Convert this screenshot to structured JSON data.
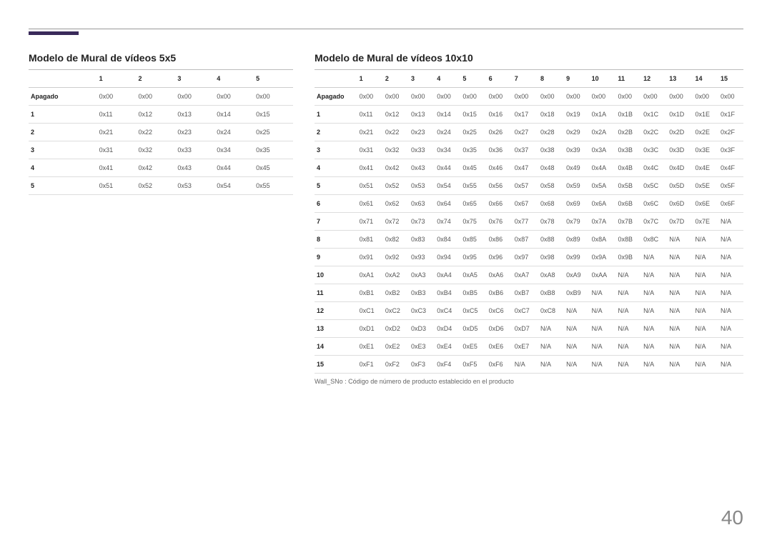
{
  "page_number": "40",
  "footnote": "Wall_SNo : Código de número de producto establecido en el producto",
  "table5": {
    "title": "Modelo de Mural de vídeos 5x5",
    "columns": [
      "",
      "1",
      "2",
      "3",
      "4",
      "5"
    ],
    "rows": [
      [
        "Apagado",
        "0x00",
        "0x00",
        "0x00",
        "0x00",
        "0x00"
      ],
      [
        "1",
        "0x11",
        "0x12",
        "0x13",
        "0x14",
        "0x15"
      ],
      [
        "2",
        "0x21",
        "0x22",
        "0x23",
        "0x24",
        "0x25"
      ],
      [
        "3",
        "0x31",
        "0x32",
        "0x33",
        "0x34",
        "0x35"
      ],
      [
        "4",
        "0x41",
        "0x42",
        "0x43",
        "0x44",
        "0x45"
      ],
      [
        "5",
        "0x51",
        "0x52",
        "0x53",
        "0x54",
        "0x55"
      ]
    ]
  },
  "table10": {
    "title": "Modelo de Mural de vídeos 10x10",
    "columns": [
      "",
      "1",
      "2",
      "3",
      "4",
      "5",
      "6",
      "7",
      "8",
      "9",
      "10",
      "11",
      "12",
      "13",
      "14",
      "15"
    ],
    "rows": [
      [
        "Apagado",
        "0x00",
        "0x00",
        "0x00",
        "0x00",
        "0x00",
        "0x00",
        "0x00",
        "0x00",
        "0x00",
        "0x00",
        "0x00",
        "0x00",
        "0x00",
        "0x00",
        "0x00"
      ],
      [
        "1",
        "0x11",
        "0x12",
        "0x13",
        "0x14",
        "0x15",
        "0x16",
        "0x17",
        "0x18",
        "0x19",
        "0x1A",
        "0x1B",
        "0x1C",
        "0x1D",
        "0x1E",
        "0x1F"
      ],
      [
        "2",
        "0x21",
        "0x22",
        "0x23",
        "0x24",
        "0x25",
        "0x26",
        "0x27",
        "0x28",
        "0x29",
        "0x2A",
        "0x2B",
        "0x2C",
        "0x2D",
        "0x2E",
        "0x2F"
      ],
      [
        "3",
        "0x31",
        "0x32",
        "0x33",
        "0x34",
        "0x35",
        "0x36",
        "0x37",
        "0x38",
        "0x39",
        "0x3A",
        "0x3B",
        "0x3C",
        "0x3D",
        "0x3E",
        "0x3F"
      ],
      [
        "4",
        "0x41",
        "0x42",
        "0x43",
        "0x44",
        "0x45",
        "0x46",
        "0x47",
        "0x48",
        "0x49",
        "0x4A",
        "0x4B",
        "0x4C",
        "0x4D",
        "0x4E",
        "0x4F"
      ],
      [
        "5",
        "0x51",
        "0x52",
        "0x53",
        "0x54",
        "0x55",
        "0x56",
        "0x57",
        "0x58",
        "0x59",
        "0x5A",
        "0x5B",
        "0x5C",
        "0x5D",
        "0x5E",
        "0x5F"
      ],
      [
        "6",
        "0x61",
        "0x62",
        "0x63",
        "0x64",
        "0x65",
        "0x66",
        "0x67",
        "0x68",
        "0x69",
        "0x6A",
        "0x6B",
        "0x6C",
        "0x6D",
        "0x6E",
        "0x6F"
      ],
      [
        "7",
        "0x71",
        "0x72",
        "0x73",
        "0x74",
        "0x75",
        "0x76",
        "0x77",
        "0x78",
        "0x79",
        "0x7A",
        "0x7B",
        "0x7C",
        "0x7D",
        "0x7E",
        "N/A"
      ],
      [
        "8",
        "0x81",
        "0x82",
        "0x83",
        "0x84",
        "0x85",
        "0x86",
        "0x87",
        "0x88",
        "0x89",
        "0x8A",
        "0x8B",
        "0x8C",
        "N/A",
        "N/A",
        "N/A"
      ],
      [
        "9",
        "0x91",
        "0x92",
        "0x93",
        "0x94",
        "0x95",
        "0x96",
        "0x97",
        "0x98",
        "0x99",
        "0x9A",
        "0x9B",
        "N/A",
        "N/A",
        "N/A",
        "N/A"
      ],
      [
        "10",
        "0xA1",
        "0xA2",
        "0xA3",
        "0xA4",
        "0xA5",
        "0xA6",
        "0xA7",
        "0xA8",
        "0xA9",
        "0xAA",
        "N/A",
        "N/A",
        "N/A",
        "N/A",
        "N/A"
      ],
      [
        "11",
        "0xB1",
        "0xB2",
        "0xB3",
        "0xB4",
        "0xB5",
        "0xB6",
        "0xB7",
        "0xB8",
        "0xB9",
        "N/A",
        "N/A",
        "N/A",
        "N/A",
        "N/A",
        "N/A"
      ],
      [
        "12",
        "0xC1",
        "0xC2",
        "0xC3",
        "0xC4",
        "0xC5",
        "0xC6",
        "0xC7",
        "0xC8",
        "N/A",
        "N/A",
        "N/A",
        "N/A",
        "N/A",
        "N/A",
        "N/A"
      ],
      [
        "13",
        "0xD1",
        "0xD2",
        "0xD3",
        "0xD4",
        "0xD5",
        "0xD6",
        "0xD7",
        "N/A",
        "N/A",
        "N/A",
        "N/A",
        "N/A",
        "N/A",
        "N/A",
        "N/A"
      ],
      [
        "14",
        "0xE1",
        "0xE2",
        "0xE3",
        "0xE4",
        "0xE5",
        "0xE6",
        "0xE7",
        "N/A",
        "N/A",
        "N/A",
        "N/A",
        "N/A",
        "N/A",
        "N/A",
        "N/A"
      ],
      [
        "15",
        "0xF1",
        "0xF2",
        "0xF3",
        "0xF4",
        "0xF5",
        "0xF6",
        "N/A",
        "N/A",
        "N/A",
        "N/A",
        "N/A",
        "N/A",
        "N/A",
        "N/A",
        "N/A"
      ]
    ]
  }
}
